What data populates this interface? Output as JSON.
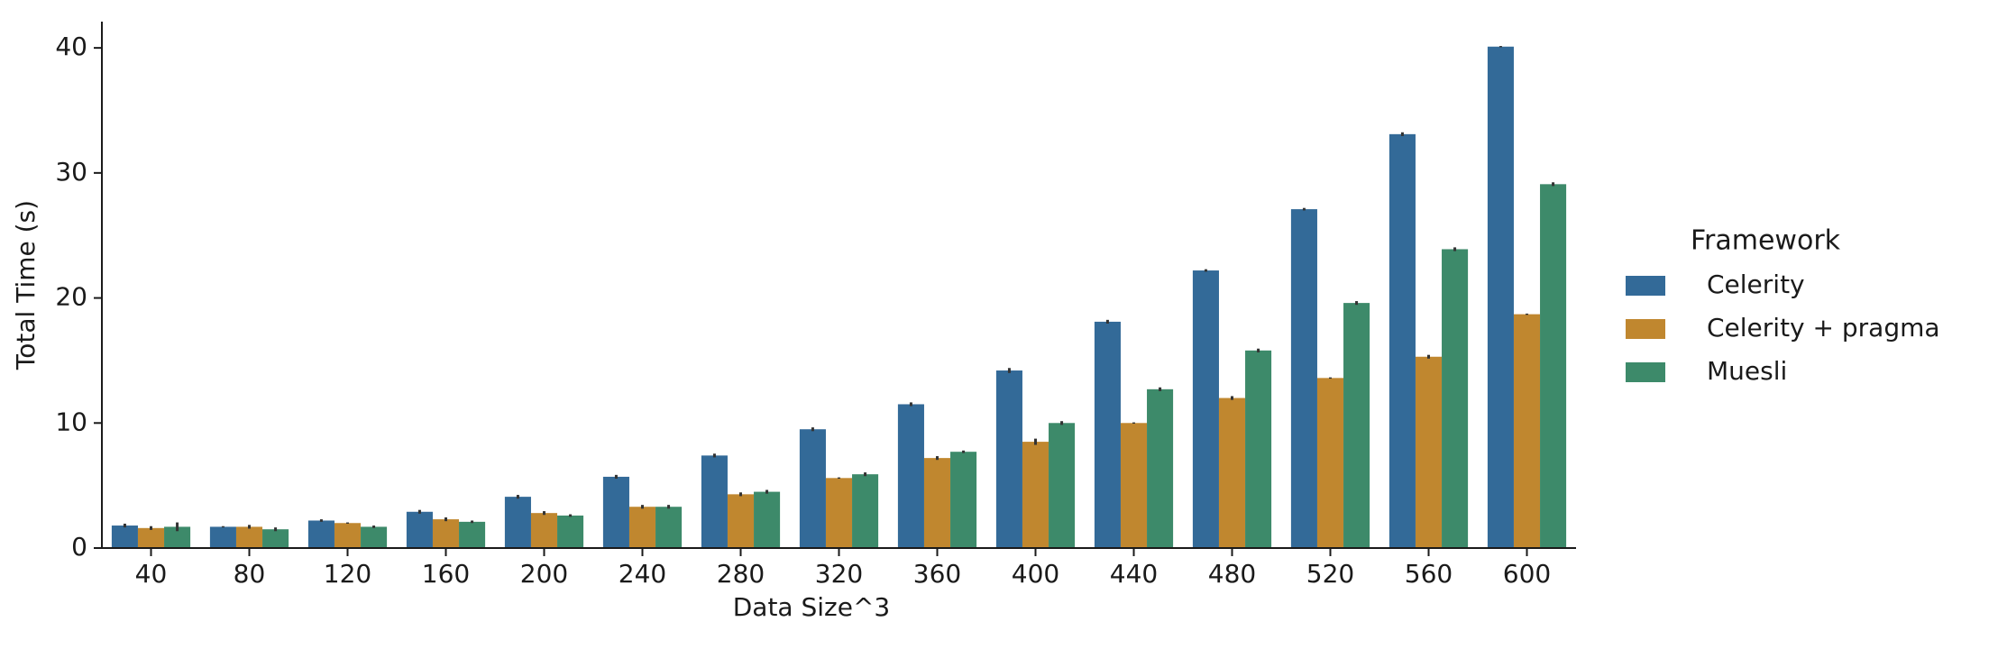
{
  "chart_data": {
    "type": "bar",
    "xlabel": "Data Size^3",
    "ylabel": "Total Time (s)",
    "categories": [
      "40",
      "80",
      "120",
      "160",
      "200",
      "240",
      "280",
      "320",
      "360",
      "400",
      "440",
      "480",
      "520",
      "560",
      "600"
    ],
    "series": [
      {
        "name": "Celerity",
        "color": "#336a98",
        "values": [
          1.8,
          1.7,
          2.2,
          2.9,
          4.1,
          5.7,
          7.4,
          9.5,
          11.5,
          14.2,
          18.1,
          22.2,
          27.1,
          33.1,
          40.1
        ],
        "errors": [
          0.15,
          0.05,
          0.1,
          0.15,
          0.15,
          0.15,
          0.15,
          0.15,
          0.15,
          0.2,
          0.15,
          0.1,
          0.1,
          0.15,
          0.05
        ]
      },
      {
        "name": "Celerity + pragma",
        "color": "#c0872f",
        "values": [
          1.6,
          1.7,
          2.0,
          2.3,
          2.8,
          3.3,
          4.3,
          5.6,
          7.2,
          8.5,
          10.0,
          12.0,
          13.6,
          15.3,
          18.7
        ],
        "errors": [
          0.15,
          0.15,
          0.05,
          0.15,
          0.15,
          0.15,
          0.15,
          0.05,
          0.15,
          0.25,
          0.05,
          0.15,
          0.05,
          0.15,
          0.05
        ]
      },
      {
        "name": "Muesli",
        "color": "#3d8a6a",
        "values": [
          1.7,
          1.5,
          1.7,
          2.1,
          2.6,
          3.3,
          4.5,
          5.9,
          7.7,
          10.0,
          12.7,
          15.8,
          19.6,
          23.9,
          29.1
        ],
        "errors": [
          0.35,
          0.15,
          0.1,
          0.1,
          0.1,
          0.15,
          0.15,
          0.15,
          0.1,
          0.15,
          0.15,
          0.15,
          0.15,
          0.15,
          0.15
        ]
      }
    ],
    "ylim": [
      0,
      42.1
    ],
    "yticks": [
      0,
      10,
      20,
      30,
      40
    ],
    "legend_title": "Framework",
    "legend": "right"
  }
}
